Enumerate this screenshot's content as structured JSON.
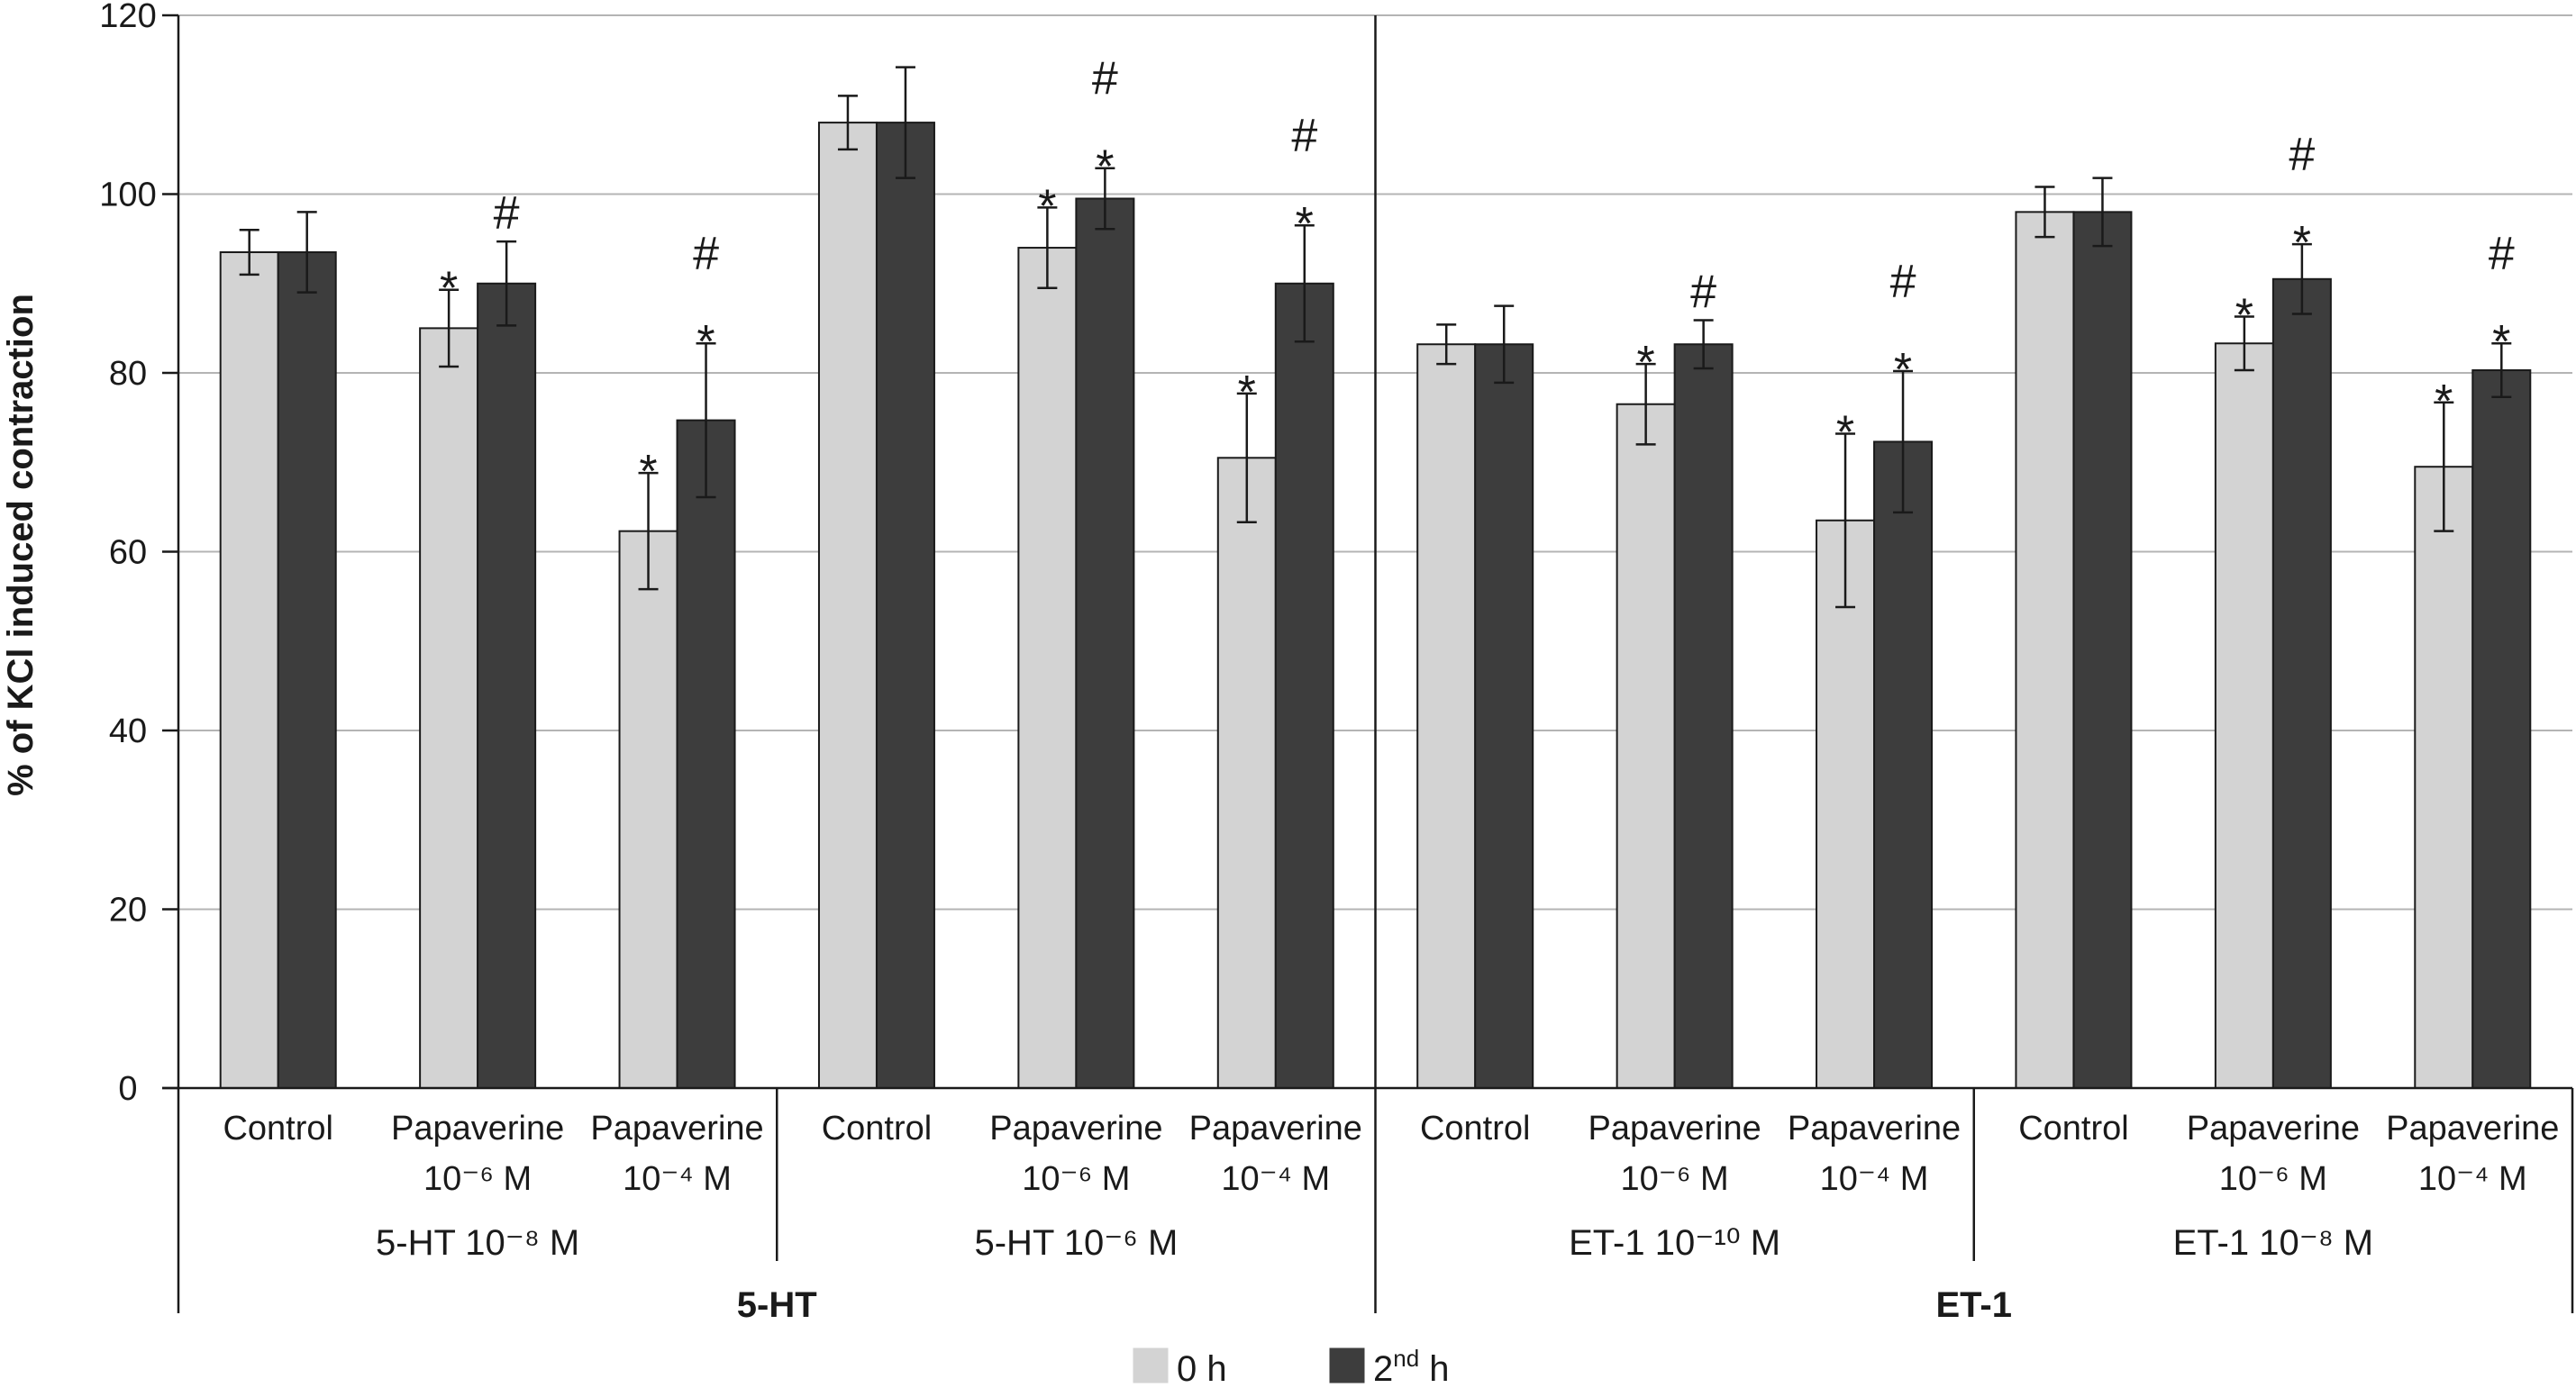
{
  "chart_data": {
    "type": "bar",
    "ylabel": "% of KCl induced contraction",
    "ylim": [
      0,
      120
    ],
    "yticks": [
      0,
      20,
      40,
      60,
      80,
      100,
      120
    ],
    "grid": true,
    "legend_position": "bottom-center",
    "legend": [
      {
        "name": "0 h",
        "name_main": "0 h",
        "sup": "",
        "name_post": "",
        "color": "#d3d3d3"
      },
      {
        "name": "2nd h",
        "name_main": "2",
        "sup": "nd",
        "name_post": " h",
        "color": "#3d3d3d"
      }
    ],
    "supergroups": [
      {
        "label": "5-HT",
        "groups": [
          0,
          1
        ]
      },
      {
        "label": "ET-1",
        "groups": [
          2,
          3
        ]
      }
    ],
    "groups": [
      {
        "label": "5-HT 10⁻⁸ M",
        "clusters": [
          0,
          1,
          2
        ]
      },
      {
        "label": "5-HT 10⁻⁶ M",
        "clusters": [
          3,
          4,
          5
        ]
      },
      {
        "label": "ET-1 10⁻¹⁰ M",
        "clusters": [
          6,
          7,
          8
        ]
      },
      {
        "label": "ET-1 10⁻⁸ M",
        "clusters": [
          9,
          10,
          11
        ]
      }
    ],
    "clusters": [
      {
        "line1": "Control",
        "line2": "",
        "bars": [
          {
            "value": 93.5,
            "error": 2.5,
            "marker": ""
          },
          {
            "value": 93.5,
            "error": 4.5,
            "marker": ""
          }
        ]
      },
      {
        "line1": "Papaverine",
        "line2": "10⁻⁶ M",
        "bars": [
          {
            "value": 85,
            "error": 4.3,
            "marker": "*"
          },
          {
            "value": 90,
            "error": 4.7,
            "marker": "#"
          }
        ]
      },
      {
        "line1": "Papaverine",
        "line2": "10⁻⁴ M",
        "bars": [
          {
            "value": 62.3,
            "error": 6.5,
            "marker": "*"
          },
          {
            "value": 74.7,
            "error": 8.6,
            "marker": "*#"
          }
        ]
      },
      {
        "line1": "Control",
        "line2": "",
        "bars": [
          {
            "value": 108,
            "error": 3.0,
            "marker": ""
          },
          {
            "value": 108,
            "error": 6.2,
            "marker": ""
          }
        ]
      },
      {
        "line1": "Papaverine",
        "line2": "10⁻⁶ M",
        "bars": [
          {
            "value": 94,
            "error": 4.5,
            "marker": "*"
          },
          {
            "value": 99.5,
            "error": 3.4,
            "marker": "*#"
          }
        ]
      },
      {
        "line1": "Papaverine",
        "line2": "10⁻⁴ M",
        "bars": [
          {
            "value": 70.5,
            "error": 7.2,
            "marker": "*"
          },
          {
            "value": 90,
            "error": 6.5,
            "marker": "*#"
          }
        ]
      },
      {
        "line1": "Control",
        "line2": "",
        "bars": [
          {
            "value": 83.2,
            "error": 2.2,
            "marker": ""
          },
          {
            "value": 83.2,
            "error": 4.3,
            "marker": ""
          }
        ]
      },
      {
        "line1": "Papaverine",
        "line2": "10⁻⁶ M",
        "bars": [
          {
            "value": 76.5,
            "error": 4.5,
            "marker": "*"
          },
          {
            "value": 83.2,
            "error": 2.7,
            "marker": "#"
          }
        ]
      },
      {
        "line1": "Papaverine",
        "line2": "10⁻⁴ M",
        "bars": [
          {
            "value": 63.5,
            "error": 9.7,
            "marker": "*"
          },
          {
            "value": 72.3,
            "error": 7.9,
            "marker": "*#"
          }
        ]
      },
      {
        "line1": "Control",
        "line2": "",
        "bars": [
          {
            "value": 98,
            "error": 2.8,
            "marker": ""
          },
          {
            "value": 98,
            "error": 3.8,
            "marker": ""
          }
        ]
      },
      {
        "line1": "Papaverine",
        "line2": "10⁻⁶ M",
        "bars": [
          {
            "value": 83.3,
            "error": 3.0,
            "marker": "*"
          },
          {
            "value": 90.5,
            "error": 3.9,
            "marker": "*#"
          }
        ]
      },
      {
        "line1": "Papaverine",
        "line2": "10⁻⁴ M",
        "bars": [
          {
            "value": 69.5,
            "error": 7.2,
            "marker": "*"
          },
          {
            "value": 80.3,
            "error": 3.0,
            "marker": "*#"
          }
        ]
      }
    ]
  }
}
